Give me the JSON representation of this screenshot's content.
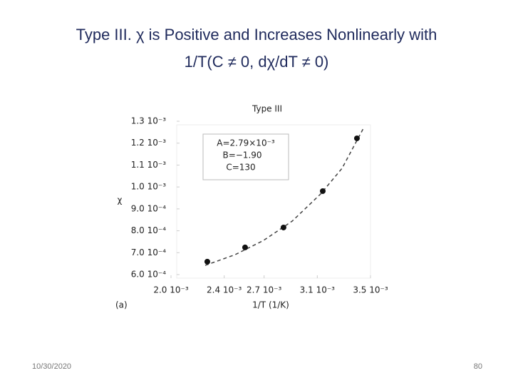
{
  "slide": {
    "title_lines": [
      "Type III. χ is Positive and Increases Nonlinearly with",
      "1/T(C ≠ 0, dχ/dT ≠ 0)"
    ],
    "date": "10/30/2020",
    "page": "80"
  },
  "chart_data": {
    "type": "scatter",
    "title": "Type III",
    "x_label": "1/T (1/K)",
    "y_label": "χ",
    "panel_label": "(a)",
    "annotation": [
      "A=2.79×10⁻³",
      "B=−1.90",
      "C=130"
    ],
    "x": [
      0.002273,
      0.002557,
      0.002846,
      0.003141,
      0.003398
    ],
    "values": [
      0.000659,
      0.000724,
      0.000815,
      0.000981,
      0.001222
    ],
    "color": "#111111",
    "fit": {
      "x": [
        0.002257,
        0.002482,
        0.002696,
        0.002911,
        0.003125,
        0.003286,
        0.003446
      ],
      "values": [
        0.000642,
        0.000691,
        0.000756,
        0.000844,
        0.000968,
        0.001085,
        0.001267
      ],
      "color": "#444444"
    },
    "xlim": [
      0.002,
      0.0035
    ],
    "ylim": [
      0.0006,
      0.0013
    ],
    "xticks": [
      {
        "value": 0.002,
        "label": "2.0 10⁻³"
      },
      {
        "value": 0.0024,
        "label": "2.4 10⁻³"
      },
      {
        "value": 0.0027,
        "label": "2.7 10⁻³"
      },
      {
        "value": 0.0031,
        "label": "3.1 10⁻³"
      },
      {
        "value": 0.0035,
        "label": "3.5 10⁻³"
      }
    ],
    "yticks": [
      {
        "value": 0.0013,
        "label": "1.3 10⁻³"
      },
      {
        "value": 0.0012,
        "label": "1.2 10⁻³"
      },
      {
        "value": 0.0011,
        "label": "1.1 10⁻³"
      },
      {
        "value": 0.001,
        "label": "1.0 10⁻³"
      },
      {
        "value": 0.0009,
        "label": "9.0 10⁻⁴"
      },
      {
        "value": 0.0008,
        "label": "8.0 10⁻⁴"
      },
      {
        "value": 0.0007,
        "label": "7.0 10⁻⁴"
      },
      {
        "value": 0.0006,
        "label": "6.0 10⁻⁴"
      }
    ]
  }
}
